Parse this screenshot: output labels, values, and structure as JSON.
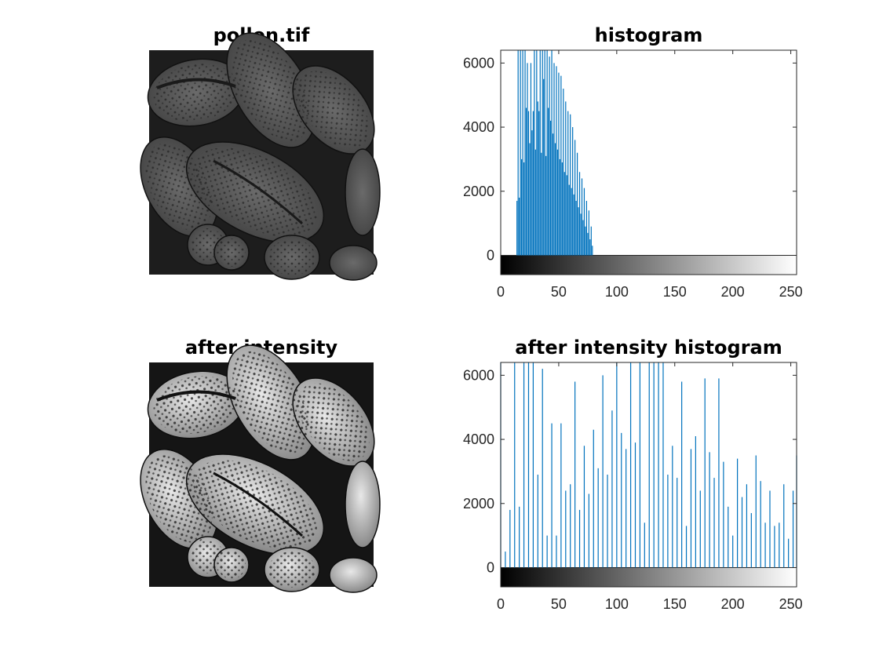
{
  "panels": [
    {
      "kind": "image",
      "title": "pollen.tif",
      "variant": "dark"
    },
    {
      "kind": "image",
      "title": "after intensity",
      "variant": "bright"
    }
  ],
  "colors": {
    "bar": "#0072BD",
    "axis": "#262626"
  },
  "chart_data": [
    {
      "type": "bar",
      "title": "histogram",
      "xlim": [
        0,
        255
      ],
      "ylim": [
        -600,
        6400
      ],
      "xticks": [
        0,
        50,
        100,
        150,
        200,
        250
      ],
      "yticks": [
        0,
        2000,
        4000,
        6000
      ],
      "colorbar": "gray",
      "x": [
        14,
        15,
        16,
        17,
        18,
        19,
        20,
        21,
        22,
        23,
        24,
        25,
        26,
        27,
        28,
        29,
        30,
        31,
        32,
        33,
        34,
        35,
        36,
        37,
        38,
        39,
        40,
        41,
        42,
        43,
        44,
        45,
        46,
        47,
        48,
        49,
        50,
        51,
        52,
        53,
        54,
        55,
        56,
        57,
        58,
        59,
        60,
        61,
        62,
        63,
        64,
        65,
        66,
        67,
        68,
        69,
        70,
        71,
        72,
        73,
        74,
        75,
        76,
        77,
        78,
        79
      ],
      "values": [
        1700,
        6400,
        1800,
        6400,
        3000,
        6400,
        2900,
        6400,
        4600,
        6000,
        4500,
        3500,
        6000,
        3900,
        4500,
        6400,
        3300,
        6400,
        4800,
        4500,
        6400,
        3200,
        6400,
        5500,
        6400,
        3100,
        6400,
        4600,
        6200,
        4200,
        6400,
        3800,
        6000,
        3500,
        5900,
        3300,
        5700,
        3000,
        5600,
        2900,
        5200,
        2600,
        4800,
        2500,
        4500,
        2200,
        4400,
        2100,
        4000,
        1900,
        3600,
        1700,
        3200,
        1500,
        2600,
        1300,
        2400,
        1100,
        2100,
        900,
        1700,
        700,
        1400,
        500,
        900,
        300
      ]
    },
    {
      "type": "bar",
      "title": "after intensity histogram",
      "xlim": [
        0,
        255
      ],
      "ylim": [
        -600,
        6400
      ],
      "xticks": [
        0,
        50,
        100,
        150,
        200,
        250
      ],
      "yticks": [
        0,
        2000,
        4000,
        6000
      ],
      "colorbar": "gray",
      "x": [
        0,
        4,
        8,
        12,
        16,
        20,
        24,
        28,
        32,
        36,
        40,
        44,
        48,
        52,
        56,
        60,
        64,
        68,
        72,
        76,
        80,
        84,
        88,
        92,
        96,
        100,
        104,
        108,
        112,
        116,
        120,
        124,
        128,
        132,
        136,
        140,
        144,
        148,
        152,
        156,
        160,
        164,
        168,
        172,
        176,
        180,
        184,
        188,
        192,
        196,
        200,
        204,
        208,
        212,
        216,
        220,
        224,
        228,
        232,
        236,
        240,
        244,
        248,
        252,
        255
      ],
      "values": [
        6400,
        500,
        1800,
        6400,
        1900,
        6400,
        6400,
        6400,
        2900,
        6200,
        1000,
        4500,
        1000,
        4500,
        2400,
        2600,
        5800,
        1800,
        3800,
        2300,
        4300,
        3100,
        6000,
        2900,
        4900,
        6400,
        4200,
        3700,
        6400,
        3900,
        6400,
        1400,
        6400,
        6400,
        6400,
        6400,
        2900,
        3800,
        2800,
        5800,
        1300,
        3700,
        4100,
        2400,
        5900,
        3600,
        2800,
        5900,
        3300,
        1900,
        1000,
        3400,
        2200,
        2600,
        1700,
        3500,
        2700,
        1400,
        2400,
        1300,
        1400,
        2600,
        900,
        2400,
        3500
      ]
    }
  ]
}
